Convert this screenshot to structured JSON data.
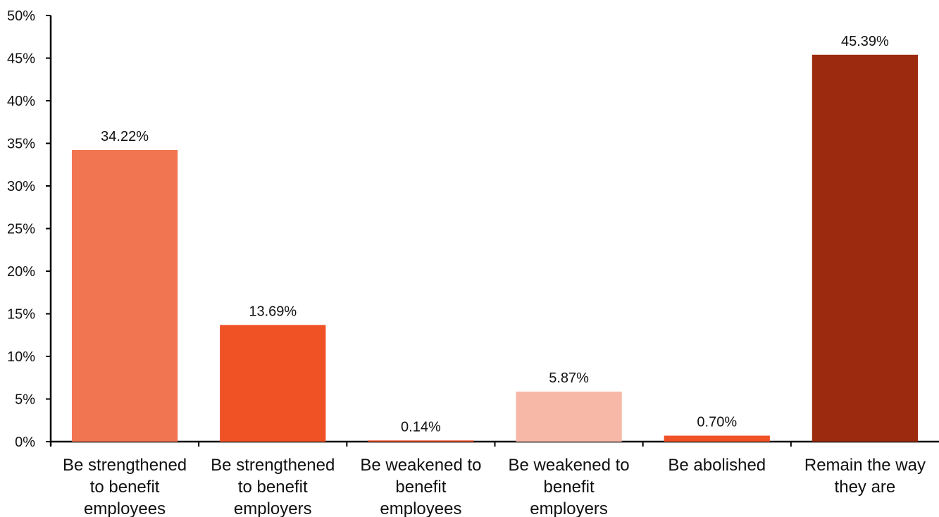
{
  "chart_data": {
    "type": "bar",
    "categories": [
      [
        "Be strengthened",
        "to benefit",
        "employees"
      ],
      [
        "Be strengthened",
        "to benefit",
        "employers"
      ],
      [
        "Be weakened to",
        "benefit",
        "employees"
      ],
      [
        "Be weakened to",
        "benefit",
        "employers"
      ],
      [
        "Be abolished"
      ],
      [
        "Remain the way",
        "they are"
      ]
    ],
    "values": [
      34.22,
      13.69,
      0.14,
      5.87,
      0.7,
      45.39
    ],
    "value_labels": [
      "34.22%",
      "13.69%",
      "0.14%",
      "5.87%",
      "0.70%",
      "45.39%"
    ],
    "colors": [
      "#f27552",
      "#f05125",
      "#f05125",
      "#f7b8a8",
      "#f05125",
      "#9b2a0e"
    ],
    "ylim": [
      0,
      50
    ],
    "yticks": [
      0,
      5,
      10,
      15,
      20,
      25,
      30,
      35,
      40,
      45,
      50
    ],
    "ytick_labels": [
      "0%",
      "5%",
      "10%",
      "15%",
      "20%",
      "25%",
      "30%",
      "35%",
      "40%",
      "45%",
      "50%"
    ],
    "grid": false,
    "legend": "none",
    "title": "",
    "xlabel": "",
    "ylabel": ""
  }
}
